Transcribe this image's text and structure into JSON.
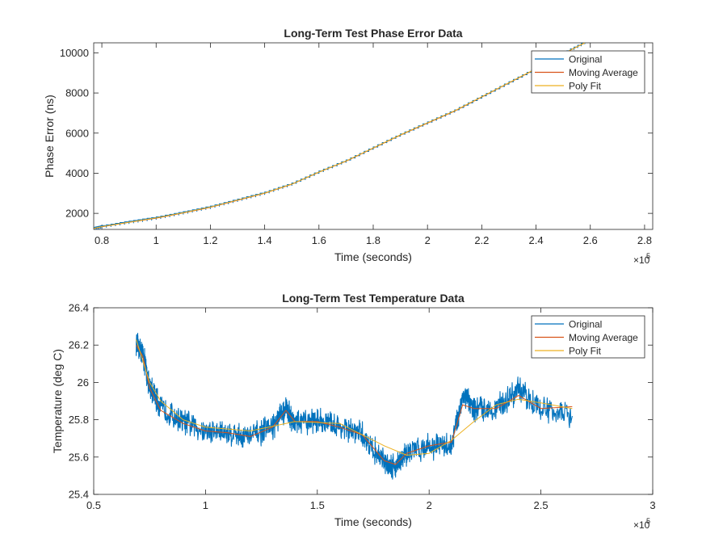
{
  "chart_data": [
    {
      "type": "line",
      "title": "Long-Term Test Phase Error Data",
      "xlabel": "Time (seconds)",
      "ylabel": "Phase Error (ns)",
      "x_exponent_label": "×10",
      "x_exponent": "5",
      "xlim": [
        0.77,
        2.83
      ],
      "ylim": [
        1200,
        10500
      ],
      "xticks": [
        0.8,
        1,
        1.2,
        1.4,
        1.6,
        1.8,
        2,
        2.2,
        2.4,
        2.6,
        2.8
      ],
      "xtick_labels": [
        "0.8",
        "1",
        "1.2",
        "1.4",
        "1.6",
        "1.8",
        "2",
        "2.2",
        "2.4",
        "2.6",
        "2.8"
      ],
      "yticks": [
        2000,
        4000,
        6000,
        8000,
        10000
      ],
      "ytick_labels": [
        "2000",
        "4000",
        "6000",
        "8000",
        "10000"
      ],
      "grid": false,
      "legend_placement": "top-right",
      "series": [
        {
          "name": "Original",
          "color": "#0072BD",
          "style": "staircase",
          "x": [
            0.77,
            0.8,
            0.9,
            1.0,
            1.1,
            1.2,
            1.3,
            1.4,
            1.5,
            1.6,
            1.7,
            1.8,
            1.9,
            2.0,
            2.1,
            2.2,
            2.3,
            2.4,
            2.5,
            2.58
          ],
          "y": [
            1240,
            1330,
            1550,
            1760,
            2020,
            2300,
            2650,
            3000,
            3450,
            4050,
            4600,
            5250,
            5900,
            6500,
            7100,
            7800,
            8500,
            9200,
            9950,
            10500
          ]
        },
        {
          "name": "Moving Average",
          "color": "#D95319",
          "x": [
            0.77,
            0.8,
            0.9,
            1.0,
            1.1,
            1.2,
            1.3,
            1.4,
            1.5,
            1.6,
            1.7,
            1.8,
            1.9,
            2.0,
            2.1,
            2.2,
            2.3,
            2.4,
            2.5,
            2.58
          ],
          "y": [
            1240,
            1330,
            1550,
            1760,
            2020,
            2300,
            2650,
            3000,
            3450,
            4050,
            4600,
            5250,
            5900,
            6500,
            7100,
            7800,
            8500,
            9200,
            9950,
            10500
          ]
        },
        {
          "name": "Poly Fit",
          "color": "#EDB120",
          "x": [
            0.77,
            0.8,
            0.9,
            1.0,
            1.1,
            1.2,
            1.3,
            1.4,
            1.5,
            1.6,
            1.7,
            1.8,
            1.9,
            2.0,
            2.1,
            2.2,
            2.3,
            2.4,
            2.5,
            2.58
          ],
          "y": [
            1250,
            1340,
            1560,
            1770,
            2030,
            2310,
            2660,
            3010,
            3460,
            4060,
            4610,
            5260,
            5910,
            6510,
            7110,
            7810,
            8510,
            9210,
            9960,
            10500
          ]
        }
      ]
    },
    {
      "type": "line",
      "title": "Long-Term Test Temperature Data",
      "xlabel": "Time (seconds)",
      "ylabel": "Temperature (deg C)",
      "x_exponent_label": "×10",
      "x_exponent": "5",
      "xlim": [
        0.5,
        3
      ],
      "ylim": [
        25.4,
        26.4
      ],
      "xticks": [
        0.5,
        1,
        1.5,
        2,
        2.5,
        3
      ],
      "xtick_labels": [
        "0.5",
        "1",
        "1.5",
        "2",
        "2.5",
        "3"
      ],
      "yticks": [
        25.4,
        25.6,
        25.8,
        26,
        26.2,
        26.4
      ],
      "ytick_labels": [
        "25.4",
        "25.6",
        "25.8",
        "26",
        "26.2",
        "26.4"
      ],
      "grid": false,
      "legend_placement": "top-right",
      "series": [
        {
          "name": "Original",
          "color": "#0072BD",
          "style": "noisy",
          "noise_amplitude": 0.08,
          "x": [
            0.69,
            0.72,
            0.75,
            0.8,
            0.9,
            1.0,
            1.1,
            1.2,
            1.3,
            1.36,
            1.4,
            1.5,
            1.6,
            1.7,
            1.8,
            1.85,
            1.9,
            2.0,
            2.1,
            2.15,
            2.2,
            2.3,
            2.4,
            2.5,
            2.64
          ],
          "y": [
            26.2,
            26.15,
            25.98,
            25.86,
            25.79,
            25.74,
            25.73,
            25.71,
            25.76,
            25.86,
            25.78,
            25.8,
            25.76,
            25.72,
            25.57,
            25.55,
            25.62,
            25.66,
            25.66,
            25.93,
            25.86,
            25.86,
            25.96,
            25.86,
            25.82
          ]
        },
        {
          "name": "Moving Average",
          "color": "#D95319",
          "x": [
            0.69,
            0.72,
            0.75,
            0.8,
            0.9,
            1.0,
            1.1,
            1.2,
            1.3,
            1.36,
            1.4,
            1.5,
            1.6,
            1.7,
            1.8,
            1.85,
            1.9,
            2.0,
            2.1,
            2.15,
            2.2,
            2.3,
            2.4,
            2.5,
            2.64
          ],
          "y": [
            26.2,
            26.14,
            25.97,
            25.85,
            25.78,
            25.74,
            25.73,
            25.71,
            25.76,
            25.85,
            25.79,
            25.79,
            25.76,
            25.72,
            25.58,
            25.56,
            25.62,
            25.66,
            25.68,
            25.88,
            25.86,
            25.86,
            25.93,
            25.86,
            25.87
          ]
        },
        {
          "name": "Poly Fit",
          "color": "#EDB120",
          "x": [
            0.69,
            0.75,
            0.8,
            0.9,
            1.0,
            1.2,
            1.4,
            1.6,
            1.8,
            1.9,
            2.0,
            2.1,
            2.2,
            2.3,
            2.4,
            2.5,
            2.64
          ],
          "y": [
            26.23,
            26.0,
            25.9,
            25.8,
            25.76,
            25.74,
            25.79,
            25.78,
            25.66,
            25.61,
            25.62,
            25.69,
            25.79,
            25.88,
            25.91,
            25.89,
            25.86
          ]
        }
      ]
    }
  ]
}
